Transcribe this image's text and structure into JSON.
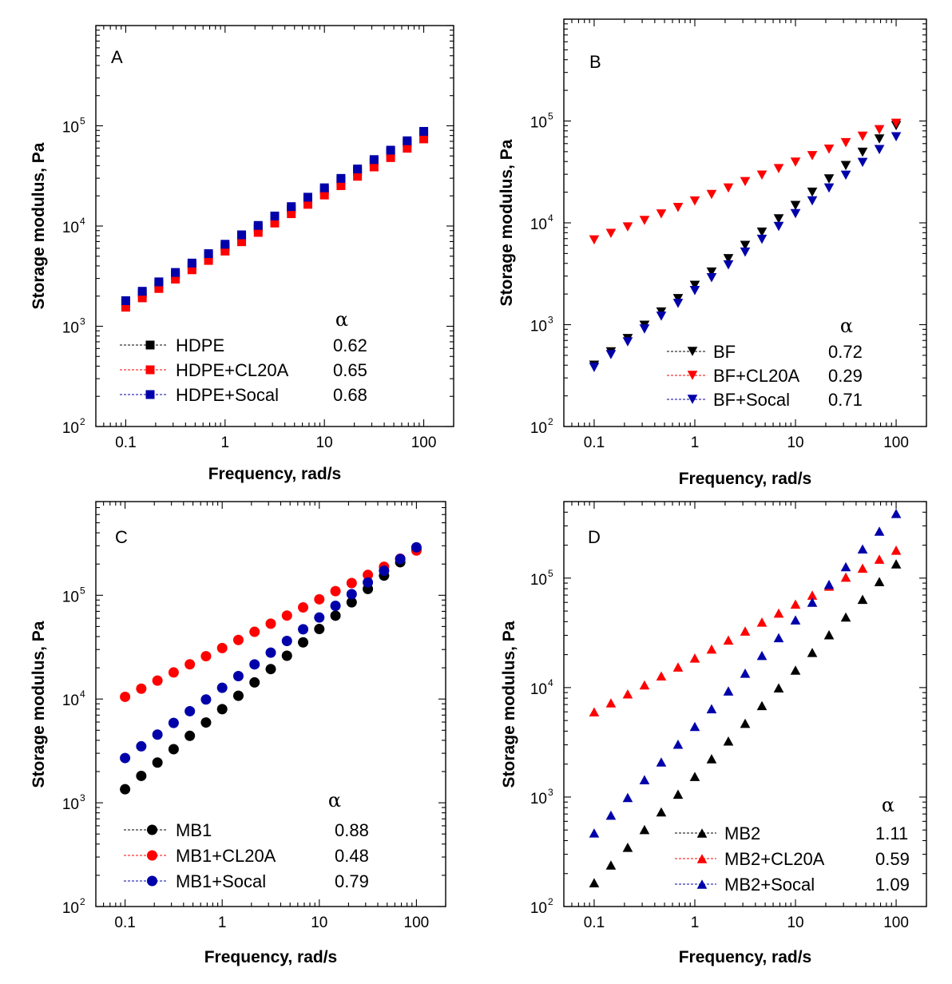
{
  "chart_data": [
    {
      "type": "scatter",
      "panel_label": "A",
      "marker": "square",
      "xlabel": "Frequency, rad/s",
      "ylabel": "Storage modulus, Pa",
      "xscale": "log",
      "yscale": "log",
      "xlim": [
        0.05,
        200
      ],
      "ylim": [
        100,
        1000000
      ],
      "xticks": [
        "0.1",
        "1",
        "10",
        "100"
      ],
      "yticks": [
        {
          "base": "10",
          "exp": "2"
        },
        {
          "base": "10",
          "exp": "3"
        },
        {
          "base": "10",
          "exp": "4"
        },
        {
          "base": "10",
          "exp": "5"
        }
      ],
      "legend_position": "bottom-left",
      "alpha_header": "α",
      "series": [
        {
          "name": "HDPE",
          "alpha": "0.62",
          "color": "#000000",
          "g_at_0_1": 1700,
          "g_at_100": 84000
        },
        {
          "name": "HDPE+CL20A",
          "alpha": "0.65",
          "color": "#ff0000",
          "g_at_0_1": 1550,
          "g_at_100": 74000
        },
        {
          "name": "HDPE+Socal",
          "alpha": "0.68",
          "color": "#0000aa",
          "g_at_0_1": 1800,
          "g_at_100": 88000
        }
      ]
    },
    {
      "type": "scatter",
      "panel_label": "B",
      "marker": "triangle-down",
      "xlabel": "Frequency, rad/s",
      "ylabel": "Storage modulus, Pa",
      "xscale": "log",
      "yscale": "log",
      "xlim": [
        0.05,
        200
      ],
      "ylim": [
        100,
        1000000
      ],
      "xticks": [
        "0.1",
        "1",
        "10",
        "100"
      ],
      "yticks": [
        {
          "base": "10",
          "exp": "2"
        },
        {
          "base": "10",
          "exp": "3"
        },
        {
          "base": "10",
          "exp": "4"
        },
        {
          "base": "10",
          "exp": "5"
        }
      ],
      "legend_position": "bottom-right",
      "alpha_header": "α",
      "series": [
        {
          "name": "BF",
          "alpha": "0.72",
          "color": "#000000",
          "g_at_0_1": 400,
          "g_at_100": 90000
        },
        {
          "name": "BF+CL20A",
          "alpha": "0.29",
          "color": "#ff0000",
          "g_at_0_1": 6800,
          "g_at_100": 95000
        },
        {
          "name": "BF+Socal",
          "alpha": "0.71",
          "color": "#0000aa",
          "g_at_0_1": 380,
          "g_at_100": 70000
        }
      ]
    },
    {
      "type": "scatter",
      "panel_label": "C",
      "marker": "circle",
      "xlabel": "Frequency, rad/s",
      "ylabel": "Storage modulus, Pa",
      "xscale": "log",
      "yscale": "log",
      "xlim": [
        0.05,
        200
      ],
      "ylim": [
        100,
        800000
      ],
      "xticks": [
        "0.1",
        "1",
        "10",
        "100"
      ],
      "yticks": [
        {
          "base": "10",
          "exp": "2"
        },
        {
          "base": "10",
          "exp": "3"
        },
        {
          "base": "10",
          "exp": "4"
        },
        {
          "base": "10",
          "exp": "5"
        }
      ],
      "legend_position": "bottom-left",
      "alpha_header": "α",
      "series": [
        {
          "name": "MB1",
          "alpha": "0.88",
          "color": "#000000",
          "g_at_0_1": 1350,
          "g_at_100": 280000
        },
        {
          "name": "MB1+CL20A",
          "alpha": "0.48",
          "color": "#ff0000",
          "g_at_0_1": 10500,
          "g_at_100": 270000
        },
        {
          "name": "MB1+Socal",
          "alpha": "0.79",
          "color": "#0000aa",
          "g_at_0_1": 2700,
          "g_at_100": 290000
        }
      ]
    },
    {
      "type": "scatter",
      "panel_label": "D",
      "marker": "triangle-up",
      "xlabel": "Frequency, rad/s",
      "ylabel": "Storage modulus, Pa",
      "xscale": "log",
      "yscale": "log",
      "xlim": [
        0.05,
        200
      ],
      "ylim": [
        100,
        500000
      ],
      "xticks": [
        "0.1",
        "1",
        "10",
        "100"
      ],
      "yticks": [
        {
          "base": "10",
          "exp": "2"
        },
        {
          "base": "10",
          "exp": "3"
        },
        {
          "base": "10",
          "exp": "4"
        },
        {
          "base": "10",
          "exp": "5"
        }
      ],
      "legend_position": "bottom-right",
      "alpha_header": "α",
      "series": [
        {
          "name": "MB2",
          "alpha": "1.11",
          "color": "#000000",
          "g_at_0_1": 165,
          "g_at_100": 135000
        },
        {
          "name": "MB2+CL20A",
          "alpha": "0.59",
          "color": "#ff0000",
          "g_at_0_1": 6000,
          "g_at_100": 180000
        },
        {
          "name": "MB2+Socal",
          "alpha": "1.09",
          "color": "#0000aa",
          "g_at_0_1": 470,
          "g_at_100": 390000
        }
      ]
    }
  ]
}
